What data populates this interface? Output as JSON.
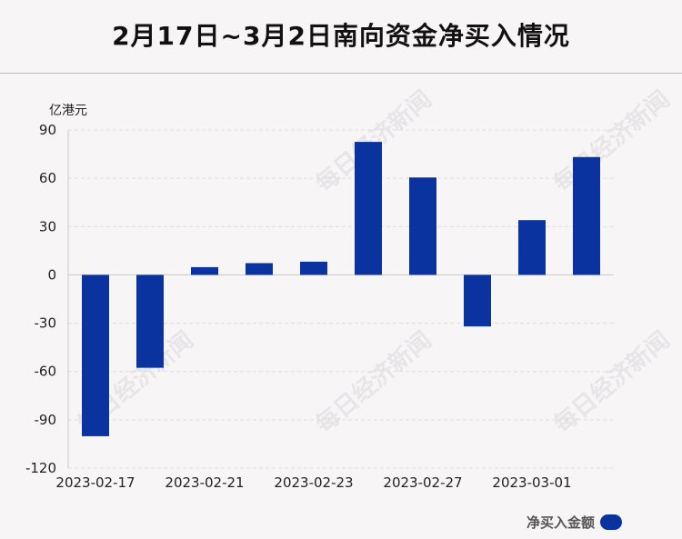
{
  "chart_data": {
    "type": "bar",
    "title": "2月17日~3月2日南向资金净买入情况",
    "unit_label": "亿港元",
    "categories": [
      "2023-02-17",
      "2023-02-20",
      "2023-02-21",
      "2023-02-22",
      "2023-02-23",
      "2023-02-24",
      "2023-02-27",
      "2023-02-28",
      "2023-03-01",
      "2023-03-02"
    ],
    "x_tick_labels": [
      "2023-02-17",
      "2023-02-21",
      "2023-02-23",
      "2023-02-27",
      "2023-03-01"
    ],
    "series": [
      {
        "name": "净买入金额",
        "values": [
          -100.2,
          -57.7,
          4.8,
          7.3,
          8.2,
          82.6,
          60.5,
          -32.0,
          34.0,
          73.2
        ]
      }
    ],
    "yticks": [
      90,
      60,
      30,
      0,
      -30,
      -60,
      -90,
      -120
    ],
    "ylim": [
      -120,
      90
    ],
    "grid": true,
    "legend_position": "bottom-right",
    "bar_color": "#0a33a0"
  },
  "watermark_text": "每日经济新闻"
}
